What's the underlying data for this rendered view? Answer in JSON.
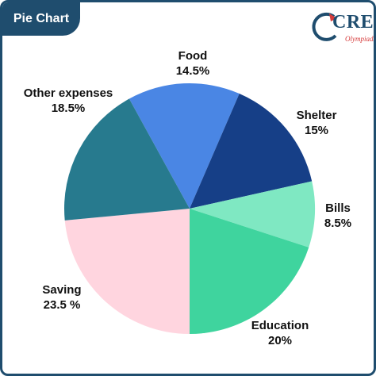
{
  "header": {
    "title": "Pie Chart"
  },
  "logo": {
    "brand": "CREST",
    "tagline": "Olympiads"
  },
  "colors": {
    "frame": "#1f4d6e",
    "logo_accent": "#d63b3b"
  },
  "chart_data": {
    "type": "pie",
    "title": "",
    "slices": [
      {
        "label": "Food",
        "value_text": "14.5%",
        "value": 14.5,
        "color": "#4a86e4"
      },
      {
        "label": "Shelter",
        "value_text": "15%",
        "value": 15,
        "color": "#163f87"
      },
      {
        "label": "Bills",
        "value_text": "8.5%",
        "value": 8.5,
        "color": "#7fe8c2"
      },
      {
        "label": "Education",
        "value_text": "20%",
        "value": 20,
        "color": "#3fd49e"
      },
      {
        "label": "Saving",
        "value_text": "23.5 %",
        "value": 23.5,
        "color": "#ffd5df"
      },
      {
        "label": "Other expenses",
        "value_text": "18.5%",
        "value": 18.5,
        "color": "#277a8e"
      }
    ]
  }
}
